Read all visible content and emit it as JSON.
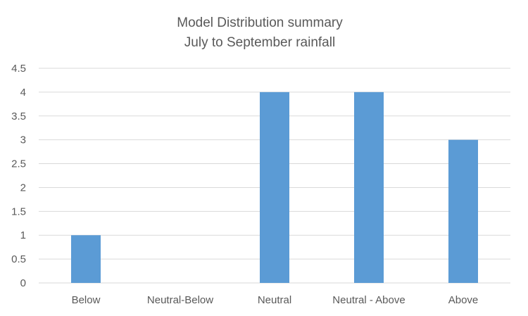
{
  "chart_data": {
    "type": "bar",
    "title_lines": [
      "Model Distribution summary",
      "July to September rainfall"
    ],
    "categories": [
      "Below",
      "Neutral-Below",
      "Neutral",
      "Neutral - Above",
      "Above"
    ],
    "values": [
      1,
      0,
      4,
      4,
      3
    ],
    "ylim": [
      0,
      4.5
    ],
    "ytick_step": 0.5,
    "yticks": [
      "0",
      "0.5",
      "1",
      "1.5",
      "2",
      "2.5",
      "3",
      "3.5",
      "4",
      "4.5"
    ],
    "xlabel": "",
    "ylabel": "",
    "grid": true,
    "legend": "none",
    "bar_color": "#5b9bd5",
    "grid_color": "#d9d9d9",
    "text_color": "#595959"
  }
}
